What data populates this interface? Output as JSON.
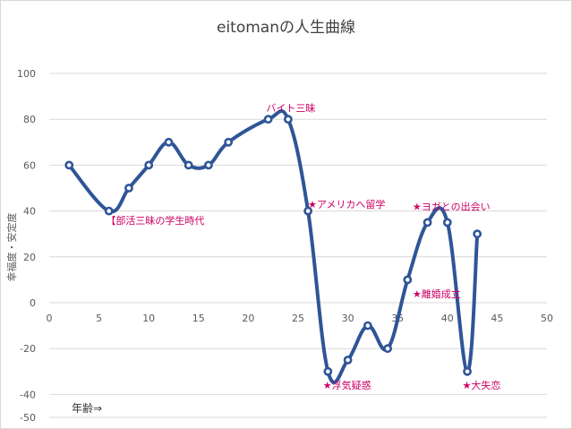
{
  "chart_data": {
    "type": "line",
    "title": "eitomanの人生曲線",
    "xlabel": "年齢⇒",
    "ylabel": "幸福度・安定度",
    "xlim": [
      0,
      50
    ],
    "ylim": [
      -50,
      100
    ],
    "x_ticks": [
      "0",
      "5",
      "10",
      "15",
      "20",
      "25",
      "30",
      "35",
      "40",
      "45",
      "50"
    ],
    "y_ticks": [
      "100",
      "80",
      "60",
      "40",
      "20",
      "0",
      "-20",
      "-40",
      "-50"
    ],
    "grid": "horizontal",
    "smooth": true,
    "colors": {
      "series": "#2f5597",
      "annotation": "#cc0066",
      "grid": "#d9d9d9",
      "axis_text": "#595959"
    },
    "series": [
      {
        "x": [
          2,
          6,
          8,
          10,
          12,
          14,
          16,
          18,
          22,
          24,
          26,
          28,
          30,
          32,
          34,
          36,
          38,
          40,
          42,
          43
        ],
        "y": [
          60,
          40,
          50,
          60,
          70,
          60,
          60,
          70,
          80,
          80,
          40,
          -30,
          -25,
          -10,
          -20,
          10,
          35,
          35,
          -30,
          30
        ]
      }
    ],
    "annotations": [
      {
        "text": "【部活三昧の学生時代",
        "x": 5.7,
        "y": 36
      },
      {
        "text": "バイト三昧",
        "x": 21.8,
        "y": 85
      },
      {
        "text": "★アメリカへ留学",
        "x": 26,
        "y": 43
      },
      {
        "text": "★ヨガとの出会い",
        "x": 36.5,
        "y": 42
      },
      {
        "text": "★離婚成立",
        "x": 36.5,
        "y": 4
      },
      {
        "text": "★浮気疑惑",
        "x": 27.5,
        "y": -36
      },
      {
        "text": "★大失恋",
        "x": 41.5,
        "y": -36
      }
    ]
  }
}
